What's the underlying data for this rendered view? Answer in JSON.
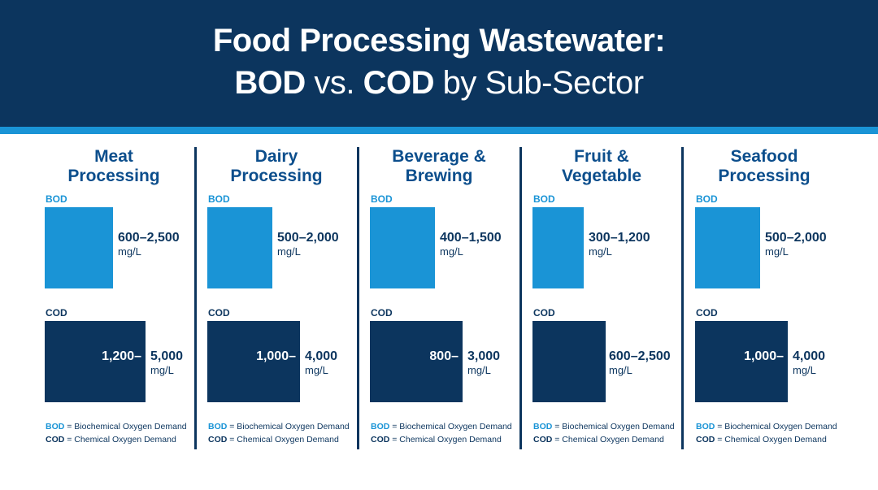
{
  "title": {
    "line1": "Food Processing Wastewater:",
    "line2_a": "BOD",
    "line2_b": " vs. ",
    "line2_c": "COD",
    "line2_d": " by Sub-Sector"
  },
  "labels": {
    "bod": "BOD",
    "cod": "COD"
  },
  "legend": {
    "bod_abbr": "BOD",
    "bod_text": " = Biochemical Oxygen Demand",
    "cod_abbr": "COD",
    "cod_text": " = Chemical Oxygen Demand"
  },
  "colors": {
    "header": "#0c355e",
    "accent": "#1a94d6",
    "bod": "#1a94d6",
    "cod": "#0c355e",
    "heading": "#0c4e8c"
  },
  "chart_data": {
    "type": "bar",
    "categories": [
      "Meat Processing",
      "Dairy Processing",
      "Beverage & Brewing",
      "Fruit & Vegetable",
      "Seafood Processing"
    ],
    "unit": "mg/L",
    "series": [
      {
        "name": "BOD",
        "ranges": [
          [
            600,
            2500
          ],
          [
            500,
            2000
          ],
          [
            400,
            1500
          ],
          [
            300,
            1200
          ],
          [
            500,
            2000
          ]
        ],
        "labels": [
          "600–2,500",
          "500–2,000",
          "400–1,500",
          "300–1,200",
          "500–2,000"
        ]
      },
      {
        "name": "COD",
        "ranges": [
          [
            1200,
            5000
          ],
          [
            1000,
            4000
          ],
          [
            800,
            3000
          ],
          [
            600,
            2500
          ],
          [
            1000,
            4000
          ]
        ],
        "labels": [
          "1,200–5,000",
          "1,000–4,000",
          "800–3,000",
          "600–2,500",
          "1,000–4,000"
        ]
      }
    ],
    "sectors": [
      {
        "title_l1": "Meat",
        "title_l2": "Processing",
        "bod_range": "600–2,500",
        "cod_lo": "1,200–",
        "cod_hi": "5,000",
        "unit": "mg/L"
      },
      {
        "title_l1": "Dairy",
        "title_l2": "Processing",
        "bod_range": "500–2,000",
        "cod_lo": "1,000–",
        "cod_hi": "4,000",
        "unit": "mg/L"
      },
      {
        "title_l1": "Beverage &",
        "title_l2": "Brewing",
        "bod_range": "400–1,500",
        "cod_lo": "800–",
        "cod_hi": "3,000",
        "unit": "mg/L"
      },
      {
        "title_l1": "Fruit &",
        "title_l2": "Vegetable",
        "bod_range": "300–1,200",
        "cod_range": "600–2,500",
        "unit": "mg/L"
      },
      {
        "title_l1": "Seafood",
        "title_l2": "Processing",
        "bod_range": "500–2,000",
        "cod_lo": "1,000–",
        "cod_hi": "4,000",
        "unit": "mg/L"
      }
    ]
  }
}
